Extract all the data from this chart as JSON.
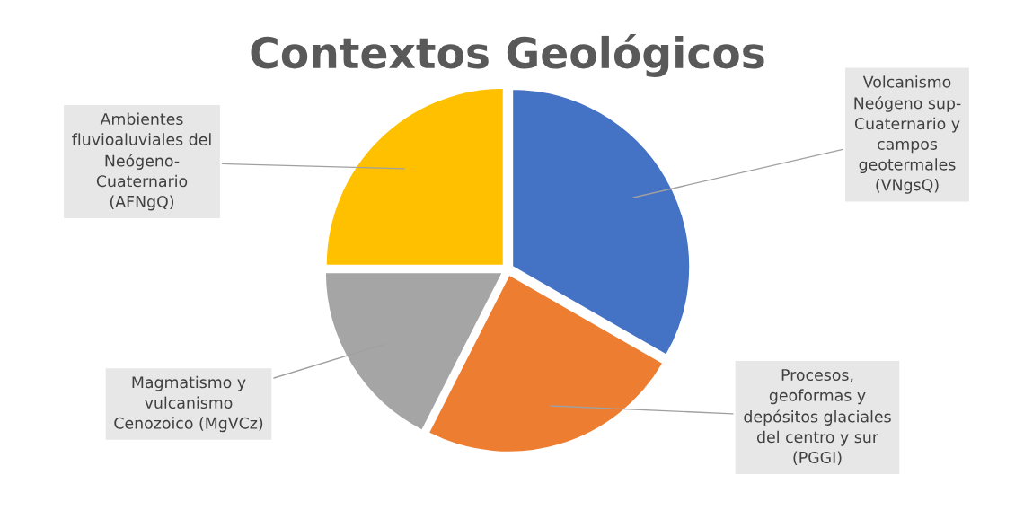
{
  "chart_data": {
    "type": "pie",
    "title": "Contextos Geológicos",
    "categories": [
      "Volcanismo\nNeógeno sup-\nCuaternario y\ncampos\ngeotermales\n(VNgsQ)",
      "Procesos,\ngeoformas y\ndepósitos glaciales\ndel centro y sur\n(PGGI)",
      "Magmatismo y\nvulcanismo\nCenozoico (MgVCz)",
      "Ambientes\nfluvioaluviales del\nNeógeno-\nCuaternario\n(AFNgQ)"
    ],
    "values": [
      33.3,
      24.2,
      17.5,
      25
    ],
    "colors": [
      "#4472c4",
      "#ed7d31",
      "#a5a5a5",
      "#ffc000"
    ]
  }
}
